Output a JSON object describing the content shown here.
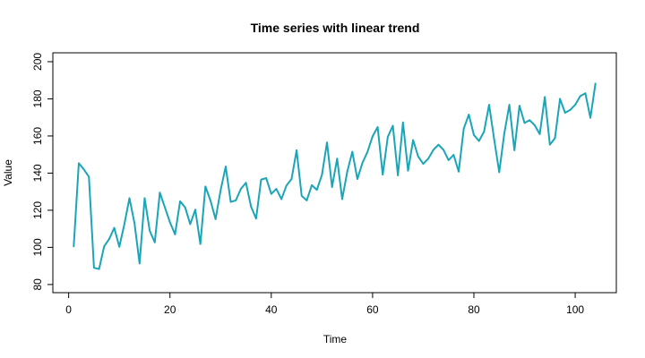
{
  "chart_data": {
    "type": "line",
    "title": "Time series with linear trend",
    "xlabel": "Time",
    "ylabel": "Value",
    "xlim": [
      -3.12,
      108.12
    ],
    "ylim": [
      75.6,
      204.8
    ],
    "xticks": [
      0,
      20,
      40,
      60,
      80,
      100
    ],
    "yticks": [
      80,
      100,
      120,
      140,
      160,
      180,
      200
    ],
    "grid": false,
    "line_color": "#1aa5b8",
    "series": [
      {
        "x": [
          1,
          2,
          3,
          4,
          5,
          6,
          7,
          8,
          9,
          10,
          11,
          12,
          13,
          14,
          15,
          16,
          17,
          18,
          19,
          20,
          21,
          22,
          23,
          24,
          25,
          26,
          27,
          28,
          29,
          30,
          31,
          32,
          33,
          34,
          35,
          36,
          37,
          38,
          39,
          40,
          41,
          42,
          43,
          44,
          45,
          46,
          47,
          48,
          49,
          50,
          51,
          52,
          53,
          54,
          55,
          56,
          57,
          58,
          59,
          60,
          61,
          62,
          63,
          64,
          65,
          66,
          67,
          68,
          69,
          70,
          71,
          72,
          73,
          74,
          75,
          76,
          77,
          78,
          79,
          80,
          81,
          82,
          83,
          84,
          85,
          86,
          87,
          88,
          89,
          90,
          91,
          92,
          93,
          94,
          95,
          96,
          97,
          98,
          99,
          100,
          101,
          102,
          103,
          104
        ],
        "values": [
          100.5,
          145.3,
          142.0,
          138.0,
          89.0,
          88.3,
          100.5,
          104.5,
          110.5,
          100.3,
          112.5,
          126.5,
          113.0,
          91.3,
          126.5,
          109.0,
          102.7,
          129.5,
          121.5,
          113.5,
          107.0,
          124.8,
          121.5,
          112.5,
          120.3,
          101.8,
          132.8,
          125.2,
          115.2,
          130.8,
          143.5,
          124.5,
          125.3,
          131.5,
          134.8,
          122.0,
          115.5,
          136.5,
          137.3,
          128.8,
          131.5,
          126.0,
          133.3,
          136.8,
          152.3,
          127.8,
          125.3,
          133.5,
          131.0,
          139.0,
          156.5,
          132.5,
          147.8,
          126.0,
          140.8,
          151.5,
          136.8,
          145.5,
          151.5,
          159.8,
          164.8,
          139.2,
          159.5,
          165.5,
          138.8,
          167.3,
          141.3,
          157.8,
          149.0,
          145.0,
          147.8,
          152.5,
          155.3,
          152.5,
          147.0,
          149.8,
          140.8,
          164.0,
          171.5,
          160.5,
          157.3,
          162.3,
          176.8,
          158.3,
          140.5,
          161.3,
          176.8,
          152.3,
          176.3,
          167.0,
          168.5,
          165.8,
          161.0,
          181.0,
          155.3,
          158.8,
          180.0,
          172.5,
          174.0,
          176.8,
          181.5,
          183.0,
          169.8,
          188.3
        ]
      }
    ]
  }
}
